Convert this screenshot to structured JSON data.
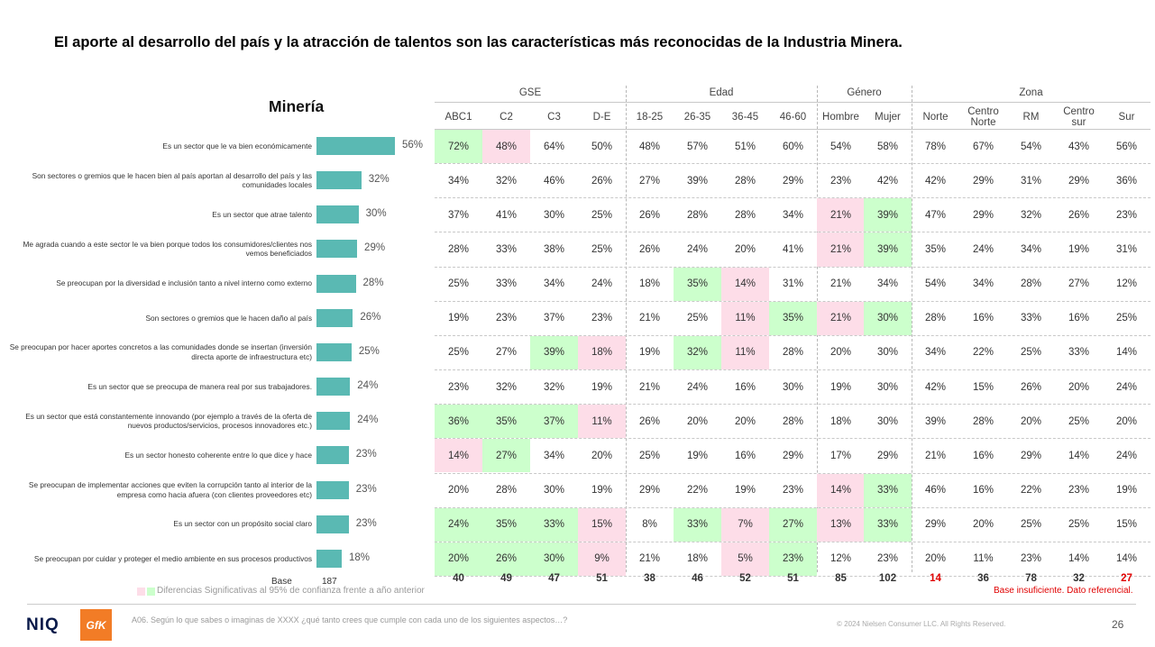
{
  "title": "El aporte al desarrollo del país y la atracción de talentos son las características más reconocidas de la Industria Minera.",
  "chart_data": {
    "type": "bar",
    "title": "Minería",
    "categories": [
      "Es un sector que le va bien económicamente",
      "Son sectores o gremios que le hacen bien al país aportan al desarrollo del país y las comunidades locales",
      "Es un sector que atrae talento",
      "Me agrada cuando a este sector le va bien porque todos los consumidores/clientes nos vemos beneficiados",
      "Se preocupan por la diversidad e inclusión tanto a nivel interno como externo",
      "Son sectores o gremios que le hacen daño al país",
      "Se preocupan por hacer aportes concretos a las comunidades donde se insertan (inversión directa aporte de infraestructura etc)",
      "Es un sector que se preocupa de manera real por sus trabajadores.",
      "Es un sector que está constantemente innovando (por ejemplo a través de la oferta de nuevos productos/servicios, procesos innovadores etc.)",
      "Es un sector honesto coherente entre lo que dice y hace",
      "Se preocupan de implementar acciones que eviten la corrupción tanto al interior de la empresa como hacia afuera (con clientes proveedores etc)",
      "Es un sector con un propósito social claro",
      "Se preocupan por cuidar y proteger el medio ambiente en sus procesos productivos"
    ],
    "values": [
      56,
      32,
      30,
      29,
      28,
      26,
      25,
      24,
      24,
      23,
      23,
      23,
      18
    ],
    "value_labels": [
      "56%",
      "32%",
      "30%",
      "29%",
      "28%",
      "26%",
      "25%",
      "24%",
      "24%",
      "23%",
      "23%",
      "23%",
      "18%"
    ],
    "xlim": [
      0,
      60
    ],
    "bar_color": "#5ab9b3",
    "base_label": "Base",
    "base_total": "187"
  },
  "table": {
    "groups": [
      {
        "label": "GSE",
        "span": 4
      },
      {
        "label": "Edad",
        "span": 4
      },
      {
        "label": "Género",
        "span": 2
      },
      {
        "label": "Zona",
        "span": 5
      }
    ],
    "columns": [
      "ABC1",
      "C2",
      "C3",
      "D-E",
      "18-25",
      "26-35",
      "36-45",
      "46-60",
      "Hombre",
      "Mujer",
      "Norte",
      "Centro Norte",
      "RM",
      "Centro sur",
      "Sur"
    ],
    "rows": [
      [
        "72%",
        "48%",
        "64%",
        "50%",
        "48%",
        "57%",
        "51%",
        "60%",
        "54%",
        "58%",
        "78%",
        "67%",
        "54%",
        "43%",
        "56%"
      ],
      [
        "34%",
        "32%",
        "46%",
        "26%",
        "27%",
        "39%",
        "28%",
        "29%",
        "23%",
        "42%",
        "42%",
        "29%",
        "31%",
        "29%",
        "36%"
      ],
      [
        "37%",
        "41%",
        "30%",
        "25%",
        "26%",
        "28%",
        "28%",
        "34%",
        "21%",
        "39%",
        "47%",
        "29%",
        "32%",
        "26%",
        "23%"
      ],
      [
        "28%",
        "33%",
        "38%",
        "25%",
        "26%",
        "24%",
        "20%",
        "41%",
        "21%",
        "39%",
        "35%",
        "24%",
        "34%",
        "19%",
        "31%"
      ],
      [
        "25%",
        "33%",
        "34%",
        "24%",
        "18%",
        "35%",
        "14%",
        "31%",
        "21%",
        "34%",
        "54%",
        "34%",
        "28%",
        "27%",
        "12%"
      ],
      [
        "19%",
        "23%",
        "37%",
        "23%",
        "21%",
        "25%",
        "11%",
        "35%",
        "21%",
        "30%",
        "28%",
        "16%",
        "33%",
        "16%",
        "25%"
      ],
      [
        "25%",
        "27%",
        "39%",
        "18%",
        "19%",
        "32%",
        "11%",
        "28%",
        "20%",
        "30%",
        "34%",
        "22%",
        "25%",
        "33%",
        "14%"
      ],
      [
        "23%",
        "32%",
        "32%",
        "19%",
        "21%",
        "24%",
        "16%",
        "30%",
        "19%",
        "30%",
        "42%",
        "15%",
        "26%",
        "20%",
        "24%"
      ],
      [
        "36%",
        "35%",
        "37%",
        "11%",
        "26%",
        "20%",
        "20%",
        "28%",
        "18%",
        "30%",
        "39%",
        "28%",
        "20%",
        "25%",
        "20%"
      ],
      [
        "14%",
        "27%",
        "34%",
        "20%",
        "25%",
        "19%",
        "16%",
        "29%",
        "17%",
        "29%",
        "21%",
        "16%",
        "29%",
        "14%",
        "24%"
      ],
      [
        "20%",
        "28%",
        "30%",
        "19%",
        "29%",
        "22%",
        "19%",
        "23%",
        "14%",
        "33%",
        "46%",
        "16%",
        "22%",
        "23%",
        "19%"
      ],
      [
        "24%",
        "35%",
        "33%",
        "15%",
        "8%",
        "33%",
        "7%",
        "27%",
        "13%",
        "33%",
        "29%",
        "20%",
        "25%",
        "25%",
        "15%"
      ],
      [
        "20%",
        "26%",
        "30%",
        "9%",
        "21%",
        "18%",
        "5%",
        "23%",
        "12%",
        "23%",
        "20%",
        "11%",
        "23%",
        "14%",
        "14%"
      ]
    ],
    "highlights": [
      [
        "g",
        "p",
        "",
        "",
        "",
        "",
        "",
        "",
        "",
        "",
        "",
        "",
        "",
        "",
        ""
      ],
      [
        "",
        "",
        "",
        "",
        "",
        "",
        "",
        "",
        "",
        "",
        "",
        "",
        "",
        "",
        ""
      ],
      [
        "",
        "",
        "",
        "",
        "",
        "",
        "",
        "",
        "p",
        "g",
        "",
        "",
        "",
        "",
        ""
      ],
      [
        "",
        "",
        "",
        "",
        "",
        "",
        "",
        "",
        "p",
        "g",
        "",
        "",
        "",
        "",
        ""
      ],
      [
        "",
        "",
        "",
        "",
        "",
        "g",
        "p",
        "",
        "",
        "",
        "",
        "",
        "",
        "",
        ""
      ],
      [
        "",
        "",
        "",
        "",
        "",
        "",
        "p",
        "g",
        "p",
        "g",
        "",
        "",
        "",
        "",
        ""
      ],
      [
        "",
        "",
        "g",
        "p",
        "",
        "g",
        "p",
        "",
        "",
        "",
        "",
        "",
        "",
        "",
        ""
      ],
      [
        "",
        "",
        "",
        "",
        "",
        "",
        "",
        "",
        "",
        "",
        "",
        "",
        "",
        "",
        ""
      ],
      [
        "g",
        "g",
        "g",
        "p",
        "",
        "",
        "",
        "",
        "",
        "",
        "",
        "",
        "",
        "",
        ""
      ],
      [
        "p",
        "g",
        "",
        "",
        "",
        "",
        "",
        "",
        "",
        "",
        "",
        "",
        "",
        "",
        ""
      ],
      [
        "",
        "",
        "",
        "",
        "",
        "",
        "",
        "",
        "p",
        "g",
        "",
        "",
        "",
        "",
        ""
      ],
      [
        "g",
        "g",
        "g",
        "p",
        "",
        "g",
        "p",
        "g",
        "p",
        "g",
        "",
        "",
        "",
        "",
        ""
      ],
      [
        "g",
        "g",
        "g",
        "p",
        "",
        "",
        "p",
        "g",
        "",
        "",
        "",
        "",
        "",
        "",
        ""
      ]
    ],
    "bases": [
      "40",
      "49",
      "47",
      "51",
      "38",
      "46",
      "52",
      "51",
      "85",
      "102",
      "14",
      "36",
      "78",
      "32",
      "27"
    ],
    "base_insufficient": [
      false,
      false,
      false,
      false,
      false,
      false,
      false,
      false,
      false,
      false,
      true,
      false,
      false,
      false,
      true
    ],
    "highlight_colors": {
      "green": "#ccffcc",
      "pink": "#fddde8"
    }
  },
  "legend": "Diferencias Significativas al 95% de confianza frente a año anterior",
  "warning": "Base insuficiente. Dato referencial.",
  "footer": {
    "brand1": "NIQ",
    "brand2": "GfK",
    "question": "A06. Según lo que sabes o imaginas de XXXX ¿qué tanto crees que cumple con cada uno de los siguientes aspectos…?",
    "copyright": "© 2024 Nielsen Consumer LLC. All Rights Reserved.",
    "page": "26"
  }
}
